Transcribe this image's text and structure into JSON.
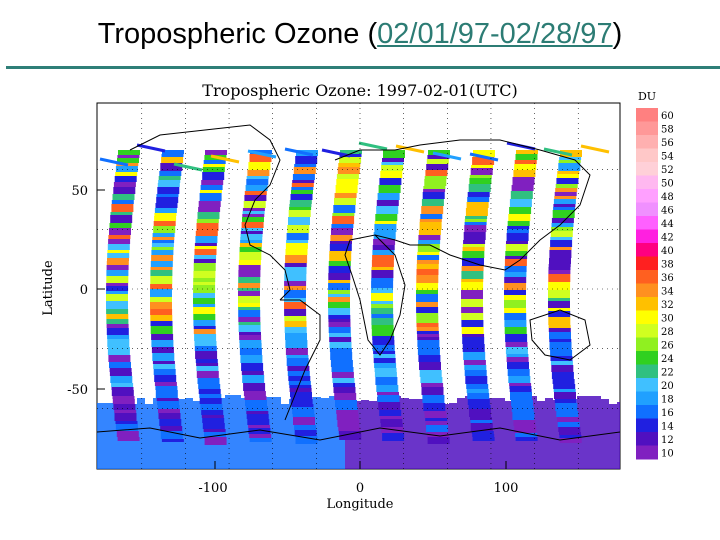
{
  "slide": {
    "title_prefix": "Tropospheric Ozone (",
    "title_link": "02/01/97-02/28/97",
    "title_suffix": ")"
  },
  "map": {
    "title": "Tropospheric Ozone: 1997-02-01(UTC)",
    "xlabel": "Longitude",
    "ylabel": "Latitude",
    "x_ticks": [
      "-100",
      "0",
      "100"
    ],
    "y_ticks": [
      "50",
      "0",
      "-50"
    ],
    "colorbar_unit": "DU",
    "colorbar_labels": [
      "60",
      "58",
      "56",
      "54",
      "52",
      "50",
      "48",
      "46",
      "44",
      "42",
      "40",
      "38",
      "36",
      "34",
      "32",
      "30",
      "28",
      "26",
      "24",
      "22",
      "20",
      "18",
      "16",
      "14",
      "12",
      "10"
    ],
    "colorbar_colors": [
      "#ff8080",
      "#ff9898",
      "#ffb0b0",
      "#ffc8c8",
      "#ffd0d8",
      "#ffb8f0",
      "#ffa0ff",
      "#f090ff",
      "#ff60ff",
      "#ff20e0",
      "#ff0080",
      "#ff2020",
      "#ff6020",
      "#ff9020",
      "#ffc000",
      "#ffff00",
      "#d0ff20",
      "#90f020",
      "#30d020",
      "#30c080",
      "#40c0ff",
      "#20a0ff",
      "#1070ff",
      "#2020e0",
      "#5010c0",
      "#8020c0"
    ]
  },
  "chart_data": {
    "type": "heatmap",
    "title": "Tropospheric Ozone: 1997-02-01(UTC)",
    "xlabel": "Longitude",
    "ylabel": "Latitude",
    "xlim": [
      -180,
      180
    ],
    "ylim": [
      -90,
      90
    ],
    "x_ticks": [
      -100,
      0,
      100
    ],
    "y_ticks": [
      -50,
      0,
      50
    ],
    "colorbar": {
      "unit": "DU",
      "min": 10,
      "max": 60,
      "step": 2
    }
  }
}
